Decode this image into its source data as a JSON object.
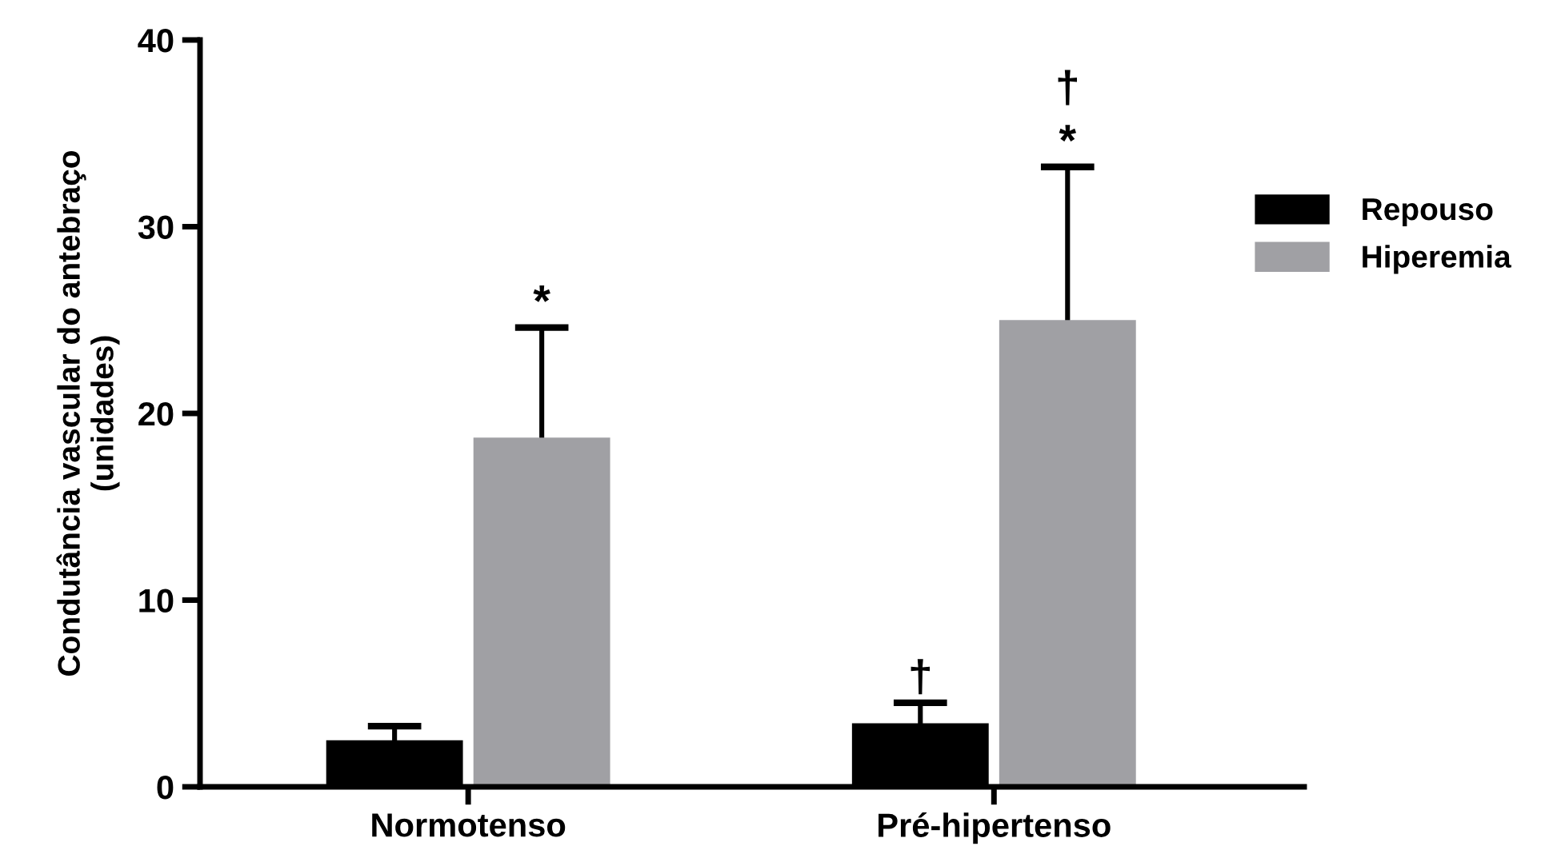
{
  "chart_data": {
    "type": "bar",
    "ylabel": "Condutância vascular do antebraço\n(unidades)",
    "categories": [
      "Normotenso",
      "Pré-hipertenso"
    ],
    "series": [
      {
        "name": "Repouso",
        "color": "#000000",
        "values": [
          2.5,
          3.4
        ],
        "errors": [
          0.75,
          1.1
        ]
      },
      {
        "name": "Hiperemia",
        "color": "#a0a0a4",
        "values": [
          18.7,
          25.0
        ],
        "errors": [
          5.9,
          8.2
        ]
      }
    ],
    "ylim": [
      0,
      40
    ],
    "yticks": [
      0,
      10,
      20,
      30,
      40
    ],
    "grid": false,
    "legend": "right",
    "annotations": [
      "*",
      "†",
      "*",
      "†"
    ]
  }
}
